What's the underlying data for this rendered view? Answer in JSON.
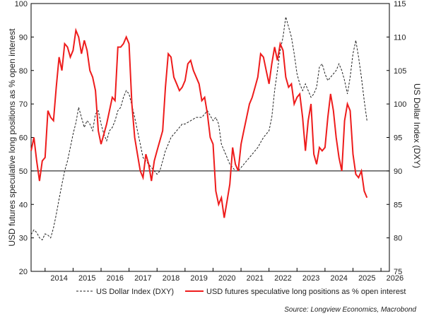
{
  "chart_data": {
    "type": "line",
    "y_left_label": "USD futures speculative long positions as % open interest",
    "y_right_label": "US Dollar Index (DXY)",
    "y_left_lim": [
      20,
      100
    ],
    "y_left_ticks": [
      "20",
      "30",
      "40",
      "50",
      "60",
      "70",
      "80",
      "90",
      "100"
    ],
    "y_right_lim": [
      75,
      115
    ],
    "y_right_ticks": [
      "75",
      "80",
      "85",
      "90",
      "95",
      "100",
      "105",
      "110",
      "115"
    ],
    "x_lim": [
      2013.5,
      2026.3
    ],
    "x_ticks": [
      "2014",
      "2015",
      "2016",
      "2017",
      "2018",
      "2019",
      "2020",
      "2021",
      "2022",
      "2023",
      "2024",
      "2025",
      "2026"
    ],
    "reference_line": {
      "axis": "right",
      "value": 90
    },
    "grid": false,
    "legend": {
      "placement": "bottom",
      "entries": [
        {
          "label": "US Dollar Index (DXY)",
          "style": "dashed",
          "color": "#222222"
        },
        {
          "label": "USD futures speculative long positions as % open interest",
          "style": "solid",
          "color": "#ee1c1c"
        }
      ]
    },
    "source": "Source: Longview Economics, Macrobond",
    "series": [
      {
        "name": "US Dollar Index (DXY)",
        "axis": "right",
        "x": [
          2013.5,
          2013.6,
          2013.7,
          2013.8,
          2013.9,
          2014.0,
          2014.1,
          2014.2,
          2014.3,
          2014.4,
          2014.5,
          2014.6,
          2014.7,
          2014.8,
          2014.9,
          2015.0,
          2015.1,
          2015.2,
          2015.3,
          2015.4,
          2015.5,
          2015.6,
          2015.7,
          2015.8,
          2015.9,
          2016.0,
          2016.1,
          2016.2,
          2016.3,
          2016.4,
          2016.5,
          2016.6,
          2016.7,
          2016.8,
          2016.9,
          2017.0,
          2017.1,
          2017.2,
          2017.3,
          2017.4,
          2017.5,
          2017.6,
          2017.7,
          2017.8,
          2017.9,
          2018.0,
          2018.1,
          2018.2,
          2018.3,
          2018.4,
          2018.5,
          2018.6,
          2018.7,
          2018.8,
          2018.9,
          2019.0,
          2019.2,
          2019.4,
          2019.6,
          2019.8,
          2020.0,
          2020.1,
          2020.2,
          2020.3,
          2020.4,
          2020.5,
          2020.6,
          2020.7,
          2020.8,
          2020.9,
          2021.0,
          2021.2,
          2021.4,
          2021.6,
          2021.8,
          2022.0,
          2022.1,
          2022.2,
          2022.3,
          2022.4,
          2022.5,
          2022.6,
          2022.7,
          2022.8,
          2022.9,
          2023.0,
          2023.1,
          2023.2,
          2023.3,
          2023.4,
          2023.5,
          2023.6,
          2023.7,
          2023.8,
          2023.9,
          2024.0,
          2024.1,
          2024.2,
          2024.3,
          2024.4,
          2024.5,
          2024.6,
          2024.7,
          2024.8,
          2024.9,
          2025.0,
          2025.1,
          2025.2,
          2025.3,
          2025.4,
          2025.5
        ],
        "values": [
          80.5,
          81.2,
          80.8,
          80.0,
          79.7,
          80.6,
          80.4,
          80.0,
          81.5,
          83.5,
          85.8,
          88.0,
          90.0,
          91.5,
          93.5,
          95.5,
          97.2,
          99.5,
          98.0,
          96.5,
          97.5,
          97.0,
          96.0,
          98.5,
          99.0,
          97.0,
          95.5,
          94.5,
          96.0,
          96.5,
          97.5,
          99.0,
          99.5,
          101.0,
          102.0,
          101.5,
          99.8,
          98.0,
          96.0,
          94.0,
          92.0,
          91.5,
          91.0,
          90.5,
          90.0,
          89.5,
          90.0,
          91.5,
          93.0,
          94.0,
          95.0,
          95.5,
          96.0,
          96.5,
          97.0,
          97.0,
          97.5,
          98.0,
          98.0,
          99.0,
          97.5,
          98.0,
          97.0,
          94.0,
          93.0,
          92.0,
          91.0,
          90.5,
          90.0,
          90.0,
          90.5,
          91.5,
          92.5,
          93.5,
          95.0,
          96.0,
          98.0,
          102.0,
          105.0,
          108.0,
          110.0,
          113.0,
          111.5,
          110.0,
          107.5,
          104.5,
          103.0,
          102.0,
          103.0,
          102.0,
          101.0,
          101.5,
          102.5,
          105.5,
          106.0,
          104.5,
          103.5,
          104.0,
          104.5,
          105.0,
          106.0,
          105.0,
          103.5,
          101.5,
          104.0,
          107.5,
          109.5,
          107.0,
          104.0,
          100.5,
          97.5
        ]
      },
      {
        "name": "USD futures speculative long positions as % open interest",
        "axis": "left",
        "x": [
          2013.5,
          2013.6,
          2013.7,
          2013.8,
          2013.9,
          2014.0,
          2014.1,
          2014.2,
          2014.3,
          2014.4,
          2014.5,
          2014.6,
          2014.7,
          2014.8,
          2014.9,
          2015.0,
          2015.1,
          2015.2,
          2015.3,
          2015.4,
          2015.5,
          2015.6,
          2015.7,
          2015.8,
          2015.9,
          2016.0,
          2016.1,
          2016.2,
          2016.3,
          2016.4,
          2016.5,
          2016.6,
          2016.7,
          2016.8,
          2016.9,
          2017.0,
          2017.1,
          2017.2,
          2017.3,
          2017.4,
          2017.5,
          2017.6,
          2017.7,
          2017.8,
          2017.9,
          2018.0,
          2018.1,
          2018.2,
          2018.3,
          2018.4,
          2018.5,
          2018.6,
          2018.7,
          2018.8,
          2018.9,
          2019.0,
          2019.1,
          2019.2,
          2019.3,
          2019.4,
          2019.5,
          2019.6,
          2019.7,
          2019.8,
          2019.9,
          2020.0,
          2020.1,
          2020.2,
          2020.3,
          2020.4,
          2020.5,
          2020.6,
          2020.7,
          2020.8,
          2020.9,
          2021.0,
          2021.1,
          2021.2,
          2021.3,
          2021.4,
          2021.5,
          2021.6,
          2021.7,
          2021.8,
          2021.9,
          2022.0,
          2022.1,
          2022.2,
          2022.3,
          2022.4,
          2022.5,
          2022.6,
          2022.7,
          2022.8,
          2022.9,
          2023.0,
          2023.1,
          2023.2,
          2023.3,
          2023.4,
          2023.5,
          2023.6,
          2023.7,
          2023.8,
          2023.9,
          2024.0,
          2024.1,
          2024.2,
          2024.3,
          2024.4,
          2024.5,
          2024.6,
          2024.7,
          2024.8,
          2024.9,
          2025.0,
          2025.1,
          2025.2,
          2025.3,
          2025.4,
          2025.5
        ],
        "values": [
          56,
          60,
          53,
          47,
          53,
          54,
          68,
          66,
          65,
          75,
          84,
          80,
          88,
          87,
          84,
          86,
          92,
          90,
          85,
          89,
          86,
          80,
          78,
          74,
          62,
          58,
          61,
          64,
          68,
          72,
          71,
          87,
          87,
          88,
          90,
          88,
          70,
          60,
          55,
          50,
          48,
          55,
          52,
          47,
          53,
          56,
          59,
          62,
          75,
          85,
          84,
          78,
          76,
          74,
          75,
          77,
          82,
          83,
          80,
          78,
          76,
          71,
          72,
          67,
          60,
          58,
          44,
          40,
          42,
          36,
          41,
          46,
          57,
          52,
          50,
          58,
          62,
          66,
          70,
          72,
          75,
          78,
          85,
          84,
          80,
          76,
          82,
          87,
          83,
          88,
          86,
          78,
          75,
          76,
          70,
          72,
          73,
          66,
          56,
          65,
          70,
          55,
          52,
          57,
          56,
          57,
          66,
          73,
          68,
          60,
          54,
          50,
          65,
          70,
          68,
          55,
          49,
          48,
          50,
          44,
          42
        ]
      }
    ]
  }
}
